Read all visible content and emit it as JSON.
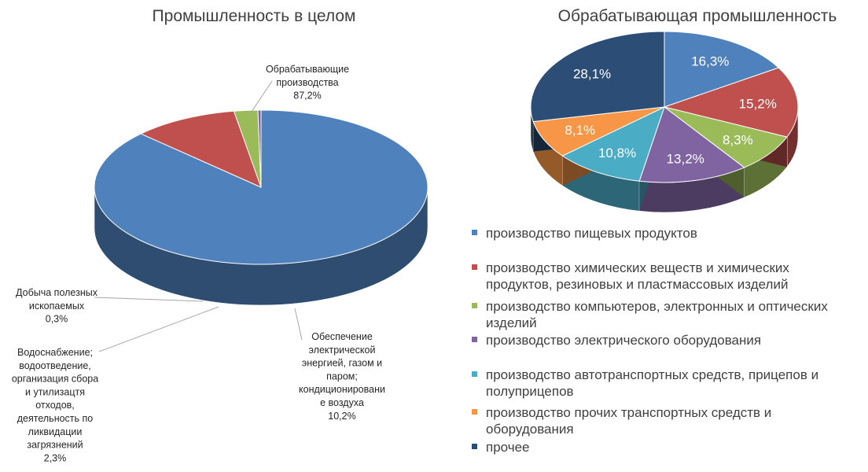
{
  "chart_data": [
    {
      "type": "pie",
      "title": "Промышленность в целом",
      "slices": [
        {
          "label": "Обрабатывающие производства",
          "value": 87.2,
          "value_label": "87,2%",
          "color": "#4F81BD"
        },
        {
          "label": "Обеспечение электрической энергией, газом и паром; кондиционирование воздуха",
          "value": 10.2,
          "value_label": "10,2%",
          "color": "#C0504D"
        },
        {
          "label": "Водоснабжение; водоотведение, организация сбора и утилизацтя отходов, деятельность по ликвидации загрязнений",
          "value": 2.3,
          "value_label": "2,3%",
          "color": "#9BBB59"
        },
        {
          "label": "Добыча полезных ископаемых",
          "value": 0.3,
          "value_label": "0,3%",
          "color": "#8064A2"
        }
      ],
      "callouts": [
        {
          "lines": [
            "Обрабатывающие",
            "производства",
            "87,2%"
          ]
        },
        {
          "lines": [
            "Обеспечение",
            "электрической",
            "энергией, газом и",
            "паром;",
            "кондиционировани",
            "е воздуха",
            "10,2%"
          ]
        },
        {
          "lines": [
            "Водоснабжение;",
            "водоотведение,",
            "организация сбора",
            "и утилизацтя",
            "отходов,",
            "деятельность по",
            "ликвидации",
            "загрязнений",
            "2,3%"
          ]
        },
        {
          "lines": [
            "Добыча полезных",
            "ископаемых",
            "0,3%"
          ]
        }
      ]
    },
    {
      "type": "pie",
      "title": "Обрабатывающая промышленность",
      "slices": [
        {
          "label": "производство пищевых продуктов",
          "value": 16.3,
          "value_label": "16,3%",
          "color": "#4F81BD"
        },
        {
          "label": "производство химических веществ и химических продуктов, резиновых и пластмассовых изделий",
          "value": 15.2,
          "value_label": "15,2%",
          "color": "#C0504D"
        },
        {
          "label": "производство компьютеров, электронных и оптических изделий",
          "value": 8.3,
          "value_label": "8,3%",
          "color": "#9BBB59"
        },
        {
          "label": "производство электрического оборудования",
          "value": 13.2,
          "value_label": "13,2%",
          "color": "#8064A2"
        },
        {
          "label": "производство автотранспортных средств,  прицепов и полуприцепов",
          "value": 10.8,
          "value_label": "10,8%",
          "color": "#4BACC6"
        },
        {
          "label": "производство прочих транспортных средств и оборудования",
          "value": 8.1,
          "value_label": "8,1%",
          "color": "#F79646"
        },
        {
          "label": "прочее",
          "value": 28.1,
          "value_label": "28,1%",
          "color": "#2C4D75"
        }
      ],
      "legend_position": "bottom",
      "legend": [
        {
          "lines": [
            "производство пищевых продуктов"
          ],
          "color": "#4F81BD"
        },
        {
          "lines": [
            "производство химических веществ и химических",
            "продуктов, резиновых и пластмассовых изделий"
          ],
          "color": "#C0504D"
        },
        {
          "lines": [
            "производство компьютеров, электронных и оптических",
            "изделий"
          ],
          "color": "#9BBB59"
        },
        {
          "lines": [
            "производство электрического оборудования"
          ],
          "color": "#8064A2"
        },
        {
          "lines": [
            "производство автотранспортных средств,  прицепов и",
            "полуприцепов"
          ],
          "color": "#4BACC6"
        },
        {
          "lines": [
            "производство прочих транспортных средств и",
            "оборудования"
          ],
          "color": "#F79646"
        },
        {
          "lines": [
            "прочее"
          ],
          "color": "#2C4D75"
        }
      ]
    }
  ]
}
